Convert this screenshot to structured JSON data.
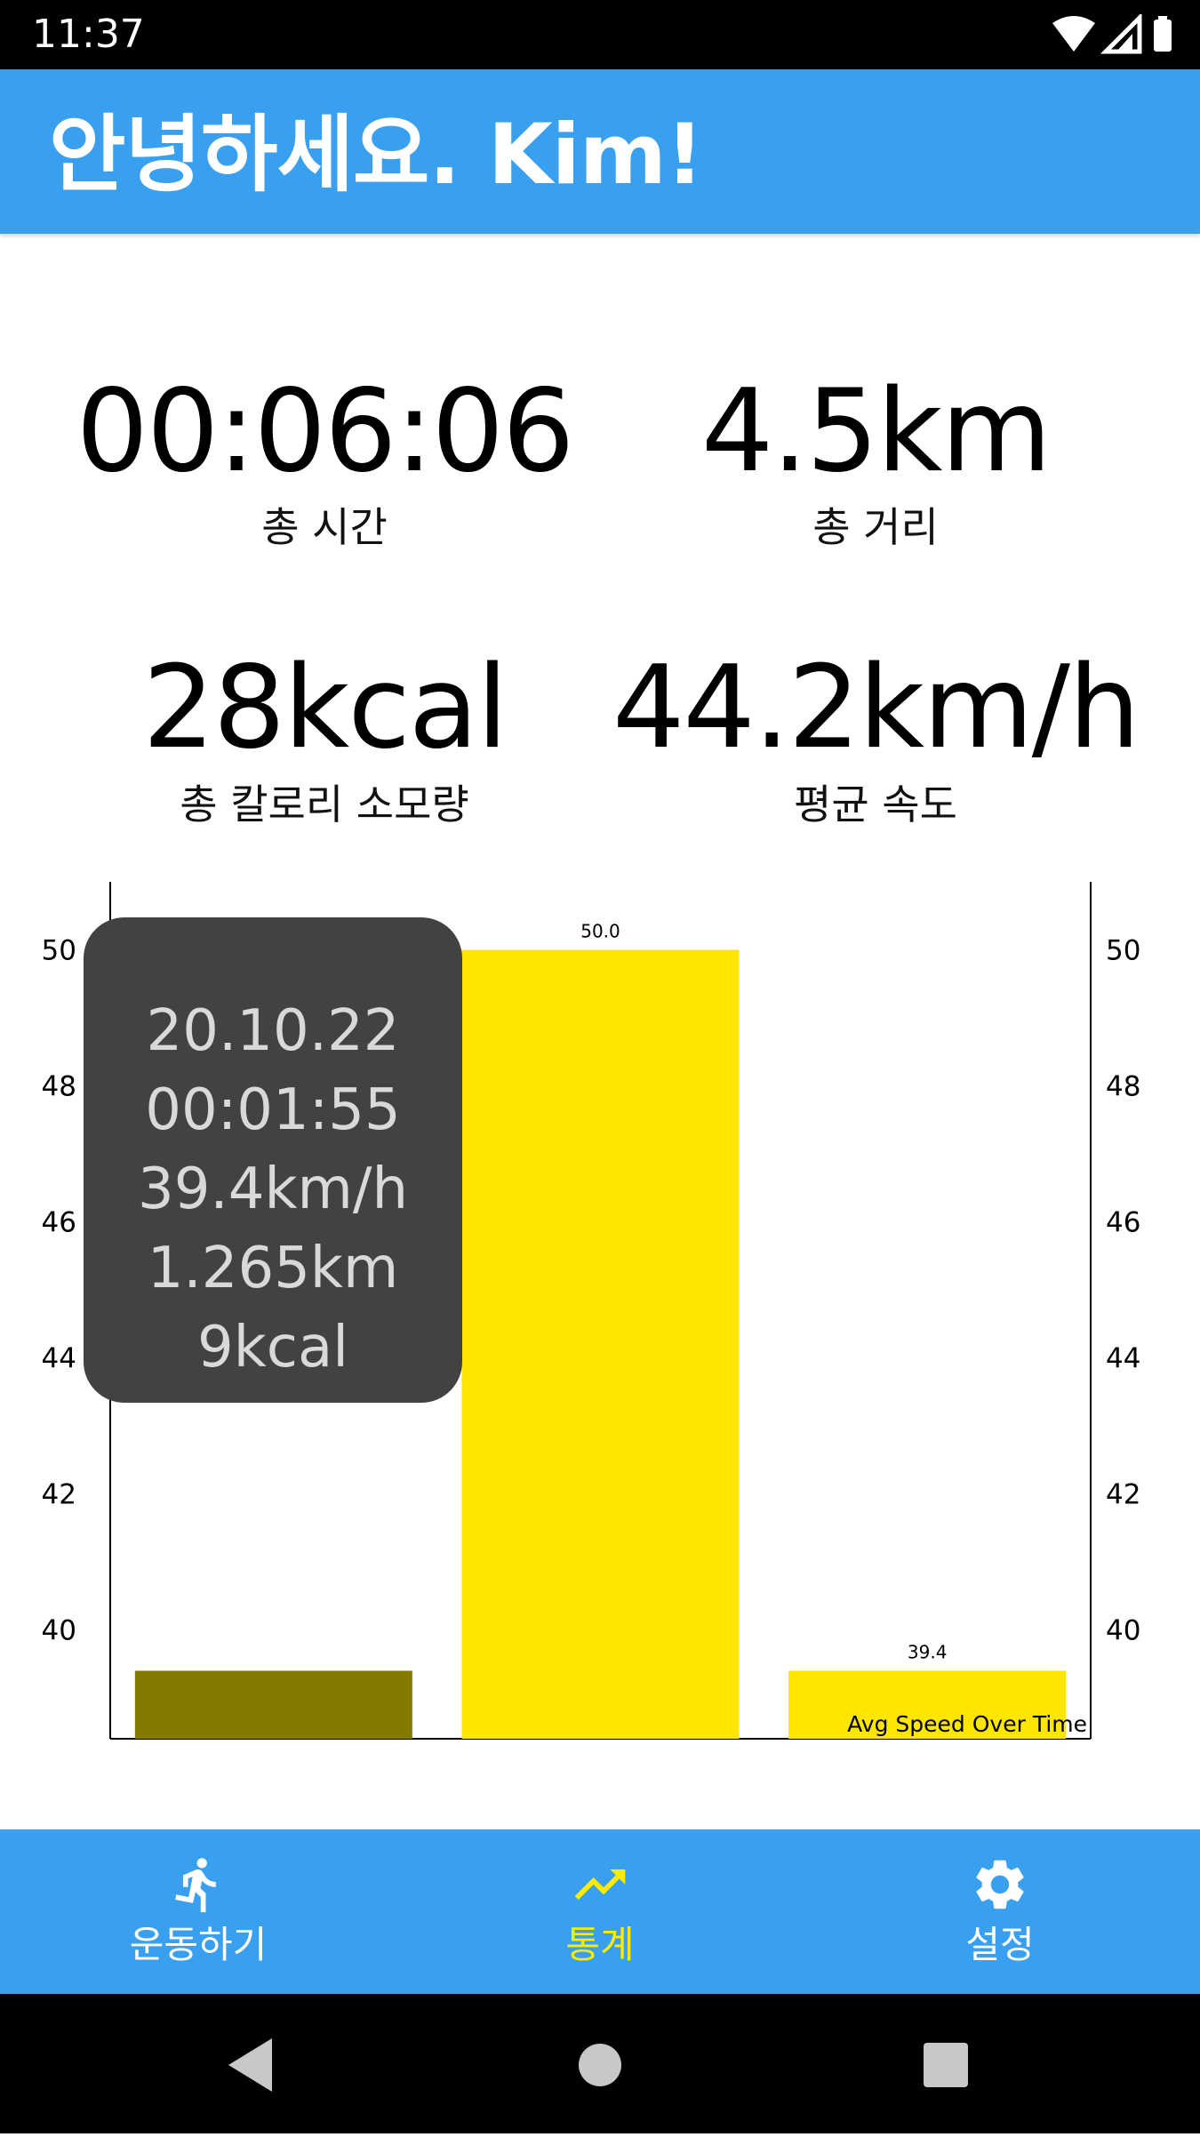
{
  "status_bar": {
    "time": "11:37"
  },
  "app_bar": {
    "title": "안녕하세요. Kim!"
  },
  "stats": [
    {
      "value": "00:06:06",
      "label": "총 시간"
    },
    {
      "value": "4.5km",
      "label": "총 거리"
    },
    {
      "value": "28kcal",
      "label": "총 칼로리 소모량"
    },
    {
      "value": "44.2km/h",
      "label": "평균 속도"
    }
  ],
  "chart_data": {
    "type": "bar",
    "title": "",
    "description_label": "Avg Speed Over Time",
    "categories": [
      "20.10.22",
      "",
      ""
    ],
    "values": [
      39.4,
      50.0,
      39.4
    ],
    "value_labels": [
      "",
      "50.0",
      "39.4"
    ],
    "highlighted_index": 0,
    "ylim": [
      38.4,
      51.0
    ],
    "yticks": [
      40,
      42,
      44,
      46,
      48,
      50
    ],
    "left_tick_labels": [
      "40",
      "42",
      "44",
      "46",
      "48",
      "50"
    ],
    "right_tick_labels": [
      "40",
      "42",
      "44",
      "46",
      "48",
      "50"
    ],
    "colors": {
      "bar": "#ffe600",
      "highlight": "#857a00"
    },
    "grid": false,
    "legend": "none"
  },
  "tooltip": {
    "lines": [
      "20.10.22",
      "00:01:55",
      "39.4km/h",
      "1.265km",
      "9kcal"
    ]
  },
  "bottom_nav": {
    "items": [
      {
        "label": "운동하기",
        "icon": "run-icon",
        "active": false
      },
      {
        "label": "통계",
        "icon": "trending-up-icon",
        "active": true
      },
      {
        "label": "설정",
        "icon": "gear-icon",
        "active": false
      }
    ],
    "active_color": "#ffeb00",
    "inactive_color": "#ffffff"
  },
  "colors": {
    "accent": "#39a0f0"
  }
}
